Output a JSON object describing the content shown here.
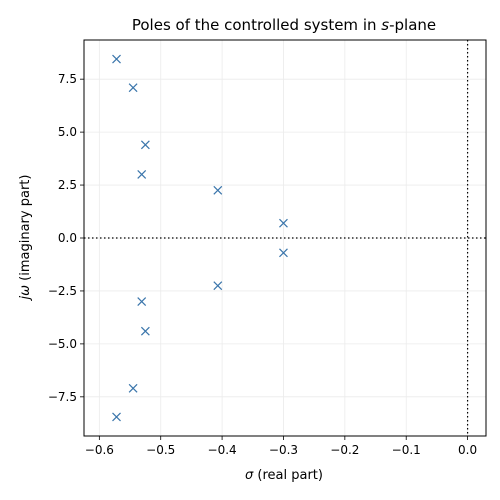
{
  "chart_data": {
    "type": "scatter",
    "title_main": "Poles of the controlled system in ",
    "title_italic": "s",
    "title_end": "-plane",
    "xlabel_symbol": "σ",
    "xlabel_text": " (real part)",
    "ylabel_symbol": "jω",
    "ylabel_text": " (imaginary part)",
    "xlim": [
      -0.625,
      0.03
    ],
    "ylim": [
      -9.35,
      9.35
    ],
    "xticks": [
      {
        "value": -0.6,
        "label": "−0.6"
      },
      {
        "value": -0.5,
        "label": "−0.5"
      },
      {
        "value": -0.4,
        "label": "−0.4"
      },
      {
        "value": -0.3,
        "label": "−0.3"
      },
      {
        "value": -0.2,
        "label": "−0.2"
      },
      {
        "value": -0.1,
        "label": "−0.1"
      },
      {
        "value": 0.0,
        "label": "0.0"
      }
    ],
    "yticks": [
      {
        "value": -7.5,
        "label": "−7.5"
      },
      {
        "value": -5.0,
        "label": "−5.0"
      },
      {
        "value": -2.5,
        "label": "−2.5"
      },
      {
        "value": 0.0,
        "label": "0.0"
      },
      {
        "value": 2.5,
        "label": "2.5"
      },
      {
        "value": 5.0,
        "label": "5.0"
      },
      {
        "value": 7.5,
        "label": "7.5"
      }
    ],
    "grid": true,
    "reference_lines": {
      "x": 0,
      "y": 0,
      "style": "dotted"
    },
    "marker": "x",
    "marker_color": "#3a75ab",
    "points": [
      {
        "x": -0.572,
        "y": 8.45
      },
      {
        "x": -0.545,
        "y": 7.1
      },
      {
        "x": -0.525,
        "y": 4.4
      },
      {
        "x": -0.531,
        "y": 3.0
      },
      {
        "x": -0.407,
        "y": 2.25
      },
      {
        "x": -0.3,
        "y": 0.7
      },
      {
        "x": -0.3,
        "y": -0.7
      },
      {
        "x": -0.407,
        "y": -2.25
      },
      {
        "x": -0.531,
        "y": -3.0
      },
      {
        "x": -0.525,
        "y": -4.4
      },
      {
        "x": -0.545,
        "y": -7.1
      },
      {
        "x": -0.572,
        "y": -8.45
      }
    ]
  }
}
